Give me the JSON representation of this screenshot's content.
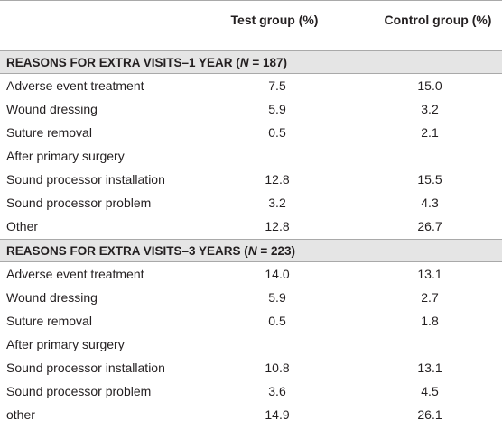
{
  "header": {
    "col1": "",
    "col2": "Test group (%)",
    "col3": "Control group (%)"
  },
  "sections": [
    {
      "title_prefix": "REASONS FOR EXTRA VISITS–1 YEAR (",
      "title_n": "N",
      "title_suffix": " = 187)",
      "rows": [
        {
          "label": "Adverse event treatment",
          "test": "7.5",
          "control": "15.0"
        },
        {
          "label": "Wound dressing",
          "test": "5.9",
          "control": "3.2"
        },
        {
          "label": "Suture removal",
          "test": "0.5",
          "control": "2.1"
        },
        {
          "label": "After primary surgery",
          "test": "",
          "control": ""
        },
        {
          "label": "Sound processor installation",
          "test": "12.8",
          "control": "15.5"
        },
        {
          "label": "Sound processor problem",
          "test": "3.2",
          "control": "4.3"
        },
        {
          "label": "Other",
          "test": "12.8",
          "control": "26.7"
        }
      ]
    },
    {
      "title_prefix": "REASONS FOR EXTRA VISITS–3 YEARS (",
      "title_n": "N",
      "title_suffix": " = 223)",
      "rows": [
        {
          "label": "Adverse event treatment",
          "test": "14.0",
          "control": "13.1"
        },
        {
          "label": "Wound dressing",
          "test": "5.9",
          "control": "2.7"
        },
        {
          "label": "Suture removal",
          "test": "0.5",
          "control": "1.8"
        },
        {
          "label": "After primary surgery",
          "test": "",
          "control": ""
        },
        {
          "label": "Sound processor installation",
          "test": "10.8",
          "control": "13.1"
        },
        {
          "label": "Sound processor problem",
          "test": "3.6",
          "control": "4.5"
        },
        {
          "label": "other",
          "test": "14.9",
          "control": "26.1"
        }
      ]
    }
  ]
}
